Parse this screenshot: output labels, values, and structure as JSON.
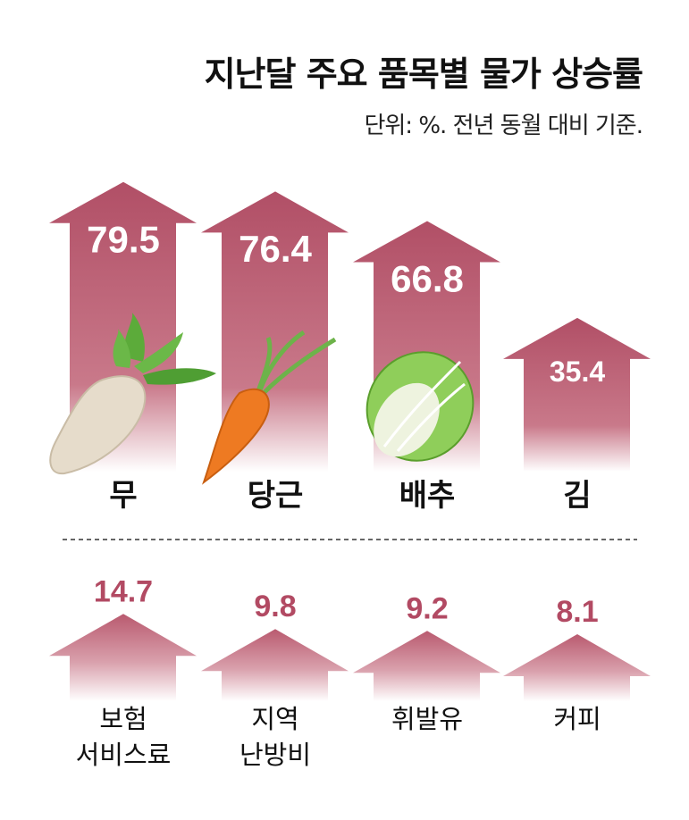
{
  "chart_data": [
    {
      "type": "bar",
      "title": "지난달 주요 품목별 물가 상승률",
      "subtitle": "단위: %. 전년 동월 대비 기준.",
      "categories": [
        "무",
        "당근",
        "배추",
        "김"
      ],
      "values": [
        79.5,
        76.4,
        66.8,
        35.4
      ],
      "value_labels": [
        "79.5",
        "76.4",
        "66.8",
        "35.4"
      ],
      "color": "#b35368"
    },
    {
      "type": "bar",
      "categories": [
        [
          "보험",
          "서비스료"
        ],
        [
          "지역",
          "난방비"
        ],
        [
          "휘발유"
        ],
        [
          "커피"
        ]
      ],
      "values": [
        14.7,
        9.8,
        9.2,
        8.1
      ],
      "value_labels": [
        "14.7",
        "9.8",
        "9.2",
        "8.1"
      ],
      "color": "#b35368"
    }
  ]
}
